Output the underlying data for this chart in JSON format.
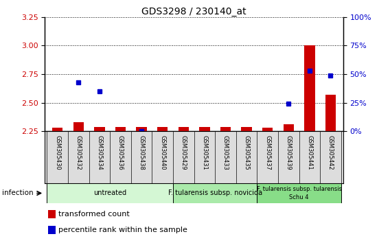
{
  "title": "GDS3298 / 230140_at",
  "samples": [
    "GSM305430",
    "GSM305432",
    "GSM305434",
    "GSM305436",
    "GSM305438",
    "GSM305440",
    "GSM305429",
    "GSM305431",
    "GSM305433",
    "GSM305435",
    "GSM305437",
    "GSM305439",
    "GSM305441",
    "GSM305442"
  ],
  "red_values": [
    2.28,
    2.33,
    2.29,
    2.29,
    2.29,
    2.29,
    2.29,
    2.29,
    2.29,
    2.29,
    2.28,
    2.31,
    3.0,
    2.57
  ],
  "blue_values": [
    null,
    2.68,
    2.6,
    null,
    2.25,
    null,
    null,
    null,
    null,
    null,
    null,
    2.49,
    2.78,
    2.74
  ],
  "ylim_left": [
    2.25,
    3.25
  ],
  "ylim_right": [
    0,
    100
  ],
  "yticks_left": [
    2.25,
    2.5,
    2.75,
    3.0,
    3.25
  ],
  "yticks_right": [
    0,
    25,
    50,
    75,
    100
  ],
  "groups": [
    {
      "label": "untreated",
      "start": 0,
      "end": 6,
      "color": "#d4f7d4"
    },
    {
      "label": "F. tularensis subsp. novicida",
      "start": 6,
      "end": 10,
      "color": "#aaeaaa"
    },
    {
      "label": "F. tularensis subsp. tularensis\nSchu 4",
      "start": 10,
      "end": 14,
      "color": "#88dd88"
    }
  ],
  "infection_label": "infection",
  "legend_red": "transformed count",
  "legend_blue": "percentile rank within the sample",
  "bar_width": 0.5,
  "red_color": "#cc0000",
  "blue_color": "#0000cc",
  "grid_color": "#000000",
  "title_fontsize": 10,
  "tick_fontsize": 8,
  "sample_fontsize": 6,
  "group_fontsize": 7,
  "legend_fontsize": 8
}
